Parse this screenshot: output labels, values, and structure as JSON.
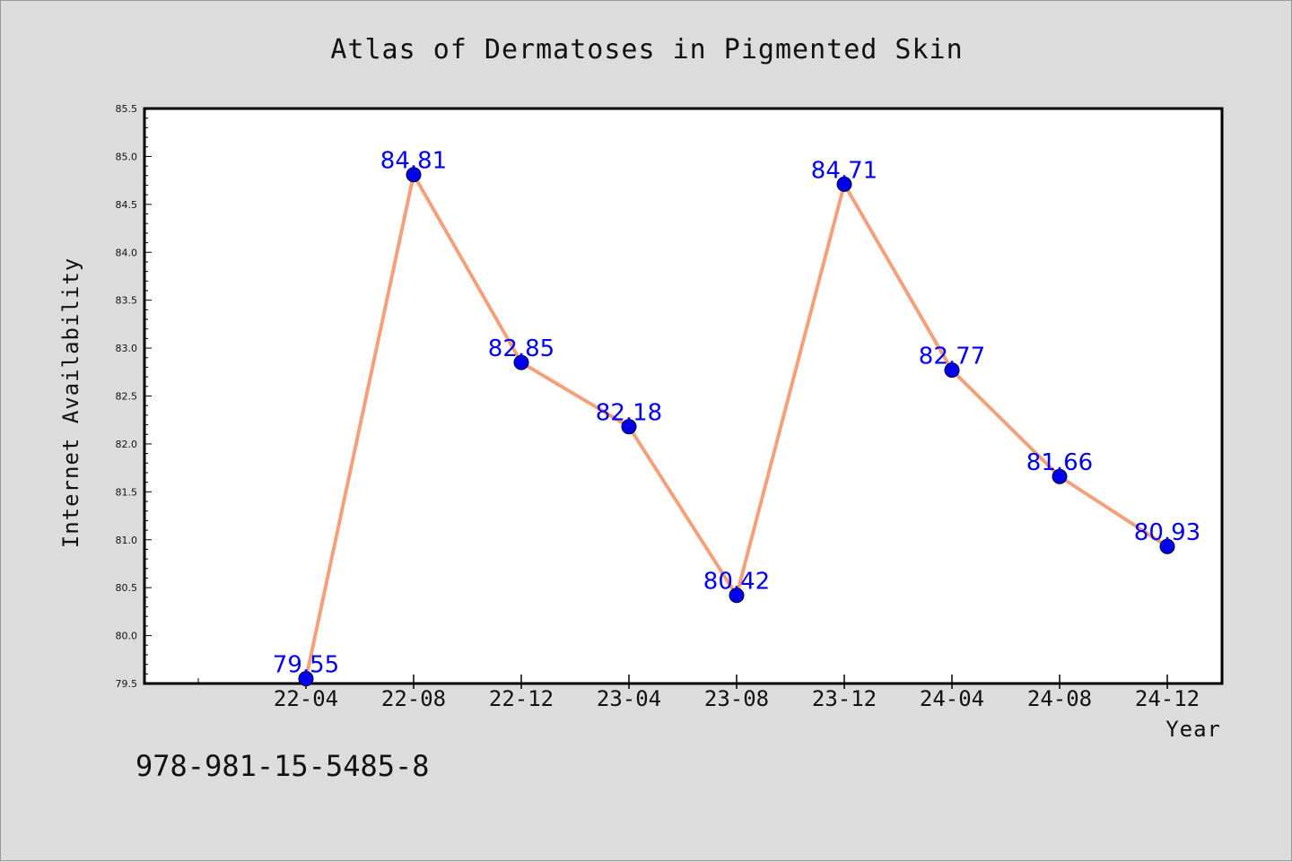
{
  "chart_data": {
    "type": "line",
    "title": "Atlas of Dermatoses in Pigmented Skin",
    "xlabel": "Year",
    "ylabel": "Internet Availability",
    "categories": [
      "22-04",
      "22-08",
      "22-12",
      "23-04",
      "23-08",
      "23-12",
      "24-04",
      "24-08",
      "24-12"
    ],
    "series": [
      {
        "values": [
          79.55,
          84.81,
          82.85,
          82.18,
          80.42,
          84.71,
          82.77,
          81.66,
          80.93
        ]
      }
    ],
    "data_labels": [
      "79.55",
      "84.81",
      "82.85",
      "82.18",
      "80.42",
      "84.71",
      "82.77",
      "81.66",
      "80.93"
    ],
    "yticks": [
      "79.5",
      "80.0",
      "80.5",
      "81.0",
      "81.5",
      "82.0",
      "82.5",
      "83.0",
      "83.5",
      "84.0",
      "84.5",
      "85.0",
      "85.5"
    ],
    "ylim": [
      79.5,
      85.5
    ],
    "grid": false,
    "legend": "none",
    "colors": {
      "line": "#f4a07a",
      "marker": "#0000ee",
      "label": "#0000ee",
      "background": "#dcdcdc",
      "plot_bg": "#ffffff"
    }
  },
  "footer": {
    "isbn": "978-981-15-5485-8"
  }
}
